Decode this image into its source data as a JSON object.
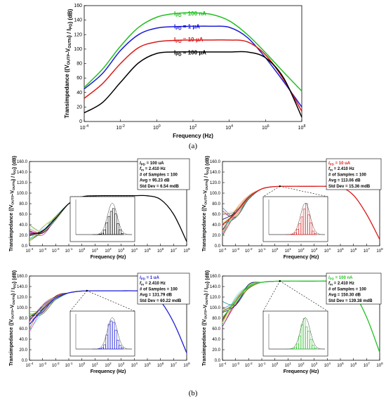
{
  "captions": {
    "a": "(a)",
    "b": "(b)"
  },
  "chart_data": [
    {
      "id": "a",
      "type": "line",
      "xscale": "log",
      "xlim": [
        0.0001,
        100000000
      ],
      "ylim": [
        0,
        160
      ],
      "xlabel": "Frequency (Hz)",
      "ylabel": "Transimpedance ((V_OUTP-V_OUTN) / I_PD) (dB)",
      "x_tick_labels": [
        "10^-4",
        "10^-2",
        "10^0",
        "10^2",
        "10^4",
        "10^6",
        "10^8"
      ],
      "y_ticks": [
        0,
        20,
        40,
        60,
        80,
        100,
        120,
        140,
        160
      ],
      "y_tick_labels": [
        "0",
        "20",
        "40",
        "60",
        "80",
        "100",
        "120",
        "140",
        "160"
      ],
      "grid": false,
      "legend_position": "top-center",
      "series": [
        {
          "name": "I_PD = 100 nA",
          "color": "#22c022",
          "x": [
            0.0001,
            0.001,
            0.01,
            0.1,
            1,
            10,
            100,
            1000,
            10000,
            100000,
            1000000,
            10000000,
            100000000
          ],
          "y": [
            47,
            72,
            104,
            130,
            144,
            149,
            150,
            148,
            139,
            120,
            95,
            68,
            42
          ]
        },
        {
          "name": "I_PD = 1 μA",
          "color": "#1a1ad6",
          "x": [
            0.0001,
            0.001,
            0.01,
            0.1,
            1,
            10,
            100,
            1000,
            10000,
            100000,
            1000000,
            10000000,
            100000000
          ],
          "y": [
            45,
            66,
            98,
            120,
            129,
            131,
            131.5,
            131.5,
            130,
            116,
            88,
            55,
            20
          ]
        },
        {
          "name": "I_PD = 10 μA",
          "color": "#dd1a1a",
          "x": [
            0.0001,
            0.001,
            0.01,
            0.1,
            1,
            10,
            100,
            1000,
            10000,
            100000,
            1000000,
            10000000,
            100000000
          ],
          "y": [
            32,
            52,
            80,
            102,
            110,
            112,
            112.5,
            112.5,
            112.5,
            110,
            92,
            58,
            14
          ]
        },
        {
          "name": "I_PD = 100 μA",
          "color": "#000000",
          "x": [
            0.0001,
            0.001,
            0.01,
            0.1,
            1,
            10,
            100,
            1000,
            10000,
            100000,
            1000000,
            10000000,
            100000000
          ],
          "y": [
            12,
            26,
            54,
            81,
            94,
            96,
            96,
            96,
            96,
            96,
            88,
            60,
            6
          ]
        }
      ]
    },
    {
      "id": "b1",
      "type": "line",
      "xscale": "log",
      "xlim": [
        0.0001,
        100000000
      ],
      "ylim": [
        0,
        160
      ],
      "xlabel": "Frequency (Hz)",
      "ylabel": "Transimpedance ((V_OUTP-V_OUTN) / I_PD) (dB)",
      "x_tick_labels": [
        "10^-4",
        "10^-3",
        "10^-2",
        "10^-1",
        "10^0",
        "10^1",
        "10^2",
        "10^3",
        "10^4",
        "10^5",
        "10^6",
        "10^7",
        "10^8"
      ],
      "y_ticks": [
        0,
        20,
        40,
        60,
        80,
        100,
        120,
        140,
        160
      ],
      "y_tick_labels": [
        "0.0",
        "20.0",
        "40.0",
        "60.0",
        "80.0",
        "100.0",
        "120.0",
        "140.0",
        "160.0"
      ],
      "color": "#000000",
      "series": [
        {
          "name": "",
          "x": [
            0.0001,
            0.001,
            0.01,
            0.1,
            1,
            10,
            100,
            1000,
            10000,
            100000,
            1000000,
            10000000,
            100000000
          ],
          "y": [
            20,
            28,
            52,
            80,
            93,
            95,
            95.2,
            95.2,
            95.2,
            95,
            88,
            60,
            8
          ]
        }
      ],
      "legend": {
        "ipd": "100 uA",
        "fm": "2.410 Hz",
        "samples": "100",
        "avg": "95.23 dB",
        "std": "6.54 mdB"
      },
      "mc_spread": {
        "low": 5,
        "high": 40
      }
    },
    {
      "id": "b2",
      "type": "line",
      "xscale": "log",
      "xlim": [
        0.0001,
        100000000
      ],
      "ylim": [
        0,
        160
      ],
      "xlabel": "Frequency (Hz)",
      "ylabel": "Transimpedance ((V_OUTP-V_OUTN) / I_PD) (dB)",
      "x_tick_labels": [
        "10^-4",
        "10^-3",
        "10^-2",
        "10^-1",
        "10^0",
        "10^1",
        "10^2",
        "10^3",
        "10^4",
        "10^5",
        "10^6",
        "10^7",
        "10^8"
      ],
      "y_ticks": [
        0,
        20,
        40,
        60,
        80,
        100,
        120,
        140,
        160
      ],
      "y_tick_labels": [
        "0.0",
        "20.0",
        "40.0",
        "60.0",
        "80.0",
        "100.0",
        "120.0",
        "140.0",
        "160.0"
      ],
      "color": "#dd1a1a",
      "series": [
        {
          "name": "",
          "x": [
            0.0001,
            0.001,
            0.01,
            0.1,
            1,
            10,
            100,
            1000,
            10000,
            100000,
            1000000,
            10000000,
            100000000
          ],
          "y": [
            40,
            62,
            92,
            108,
            112.5,
            113,
            113,
            113,
            113,
            112,
            96,
            60,
            12
          ]
        }
      ],
      "legend": {
        "ipd": "10 uA",
        "fm": "2.410 Hz",
        "samples": "100",
        "avg": "113.06 dB",
        "std": "15.36 mdB"
      },
      "mc_spread": {
        "low": 18,
        "high": 75
      }
    },
    {
      "id": "b3",
      "type": "line",
      "xscale": "log",
      "xlim": [
        0.0001,
        100000000
      ],
      "ylim": [
        0,
        160
      ],
      "xlabel": "Frequency (Hz)",
      "ylabel": "Transimpedance ((V_OUTP-V_OUTN) / I_PD) (dB)",
      "x_tick_labels": [
        "10^-4",
        "10^-3",
        "10^-2",
        "10^-1",
        "10^0",
        "10^1",
        "10^2",
        "10^3",
        "10^4",
        "10^5",
        "10^6",
        "10^7",
        "10^8"
      ],
      "y_ticks": [
        0,
        20,
        40,
        60,
        80,
        100,
        120,
        140,
        160
      ],
      "y_tick_labels": [
        "0.0",
        "20.0",
        "40.0",
        "60.0",
        "80.0",
        "100.0",
        "120.0",
        "140.0",
        "160.0"
      ],
      "color": "#1a1ad6",
      "series": [
        {
          "name": "",
          "x": [
            0.0001,
            0.001,
            0.01,
            0.1,
            1,
            10,
            100,
            1000,
            10000,
            100000,
            1000000,
            10000000,
            100000000
          ],
          "y": [
            68,
            96,
            118,
            128,
            131.5,
            131.8,
            131.8,
            131.8,
            131.8,
            130,
            112,
            72,
            14
          ]
        }
      ],
      "legend": {
        "ipd": "1 uA",
        "fm": "2.410 Hz",
        "samples": "100",
        "avg": "131.79 dB",
        "std": "60.22 mdB"
      },
      "mc_spread": {
        "low": 50,
        "high": 95
      }
    },
    {
      "id": "b4",
      "type": "line",
      "xscale": "log",
      "xlim": [
        0.0001,
        100000000
      ],
      "ylim": [
        0,
        160
      ],
      "xlabel": "Frequency (Hz)",
      "ylabel": "Transimpedance ((V_OUTP-V_OUTN) / I_PD) (dB)",
      "x_tick_labels": [
        "10^-4",
        "10^-3",
        "10^-2",
        "10^-1",
        "10^0",
        "10^1",
        "10^2",
        "10^3",
        "10^4",
        "10^5",
        "10^6",
        "10^7",
        "10^8"
      ],
      "y_ticks": [
        0,
        20,
        40,
        60,
        80,
        100,
        120,
        140,
        160
      ],
      "y_tick_labels": [
        "0.0",
        "20.0",
        "40.0",
        "60.0",
        "80.0",
        "100.0",
        "120.0",
        "140.0",
        "160.0"
      ],
      "color": "#22c022",
      "series": [
        {
          "name": "",
          "x": [
            0.0001,
            0.001,
            0.01,
            0.1,
            1,
            10,
            100,
            1000,
            10000,
            100000,
            1000000,
            10000000,
            100000000
          ],
          "y": [
            80,
            112,
            140,
            148,
            150,
            150.3,
            150.3,
            150.3,
            150.3,
            148,
            128,
            82,
            15
          ]
        }
      ],
      "legend": {
        "ipd": "100 nA",
        "fm": "2.410 Hz",
        "samples": "100",
        "avg": "150.30 dB",
        "std": "139.38 mdB"
      },
      "mc_spread": {
        "low": 62,
        "high": 112
      }
    }
  ],
  "legend_labels": {
    "ipd": "I",
    "ipd_sub": "PD",
    "fm": "f",
    "fm_sub": "m",
    "samples": "# of Samples = ",
    "avg": "Avg = ",
    "std": "Std Dev = "
  }
}
